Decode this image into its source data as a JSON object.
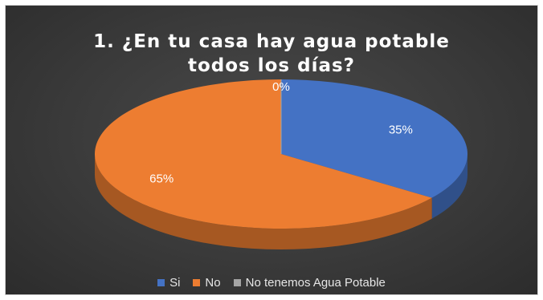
{
  "chart_data": {
    "type": "pie",
    "style": "3d",
    "title_lines": [
      "1. ¿En tu casa hay agua potable",
      "todos los días?"
    ],
    "slices": [
      {
        "name": "Si",
        "value": 35,
        "label": "35%",
        "color": "#4472c4"
      },
      {
        "name": "No",
        "value": 65,
        "label": "65%",
        "color": "#ed7d31"
      },
      {
        "name": "No tenemos Agua Potable",
        "value": 0,
        "label": "0%",
        "color": "#a5a5a5"
      }
    ],
    "legend_position": "bottom",
    "start": "top",
    "direction": "clockwise"
  },
  "colors": {
    "background": "#3a3a3a",
    "label_text": "#ffffff",
    "legend_text": "#e6e6e6"
  }
}
